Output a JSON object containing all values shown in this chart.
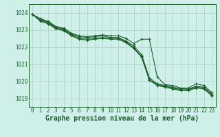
{
  "background_color": "#cff0e8",
  "grid_color": "#b0d8cc",
  "line_color": "#1a5c2a",
  "marker_color": "#1a5c2a",
  "title": "Graphe pression niveau de la mer (hPa)",
  "title_fontsize": 7.0,
  "tick_fontsize": 5.5,
  "ylim": [
    1018.5,
    1024.5
  ],
  "yticks": [
    1019,
    1020,
    1021,
    1022,
    1023,
    1024
  ],
  "xlim": [
    -0.5,
    23.5
  ],
  "xticks": [
    0,
    1,
    2,
    3,
    4,
    5,
    6,
    7,
    8,
    9,
    10,
    11,
    12,
    13,
    14,
    15,
    16,
    17,
    18,
    19,
    20,
    21,
    22,
    23
  ],
  "series": [
    [
      1023.9,
      1023.65,
      1023.5,
      1023.2,
      1023.1,
      1022.8,
      1022.65,
      1022.6,
      1022.65,
      1022.7,
      1022.65,
      1022.65,
      1022.5,
      1022.2,
      1022.45,
      1022.45,
      1020.25,
      1019.8,
      1019.75,
      1019.6,
      1019.6,
      1019.85,
      1019.75,
      1019.35
    ],
    [
      1023.9,
      1023.6,
      1023.45,
      1023.15,
      1023.05,
      1022.75,
      1022.6,
      1022.55,
      1022.6,
      1022.65,
      1022.55,
      1022.55,
      1022.35,
      1022.05,
      1021.55,
      1020.2,
      1019.85,
      1019.75,
      1019.65,
      1019.55,
      1019.55,
      1019.7,
      1019.65,
      1019.25
    ],
    [
      1023.9,
      1023.55,
      1023.4,
      1023.1,
      1023.0,
      1022.7,
      1022.5,
      1022.45,
      1022.5,
      1022.55,
      1022.5,
      1022.5,
      1022.3,
      1021.95,
      1021.45,
      1020.1,
      1019.8,
      1019.7,
      1019.6,
      1019.5,
      1019.5,
      1019.65,
      1019.6,
      1019.2
    ],
    [
      1023.9,
      1023.5,
      1023.35,
      1023.05,
      1022.95,
      1022.65,
      1022.45,
      1022.4,
      1022.45,
      1022.5,
      1022.45,
      1022.45,
      1022.25,
      1021.9,
      1021.4,
      1020.05,
      1019.75,
      1019.65,
      1019.55,
      1019.45,
      1019.45,
      1019.6,
      1019.55,
      1019.15
    ]
  ]
}
